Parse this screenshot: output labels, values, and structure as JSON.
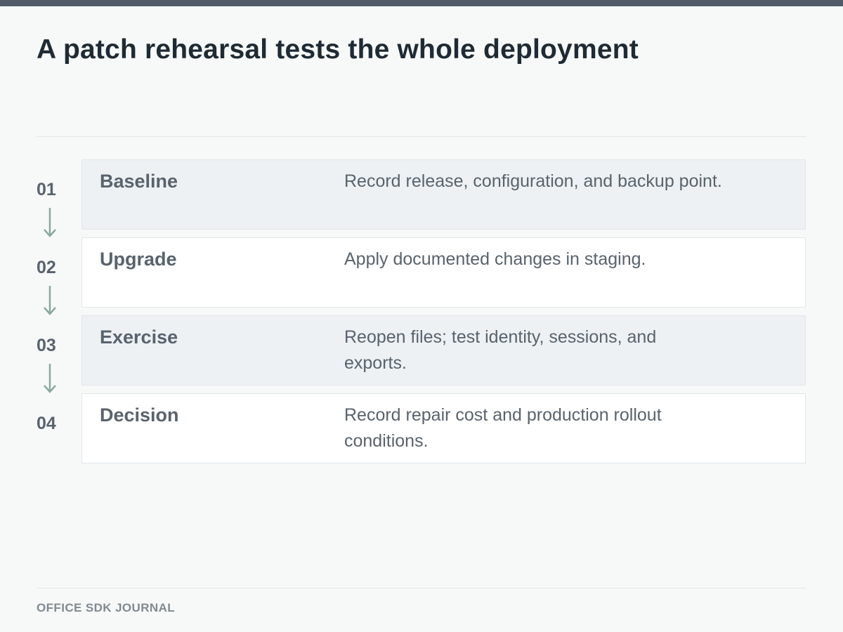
{
  "page": {
    "title": "A patch rehearsal tests the whole deployment",
    "footer": "OFFICE SDK JOURNAL"
  },
  "colors": {
    "top_bar": "#505b67",
    "arrow": "#8aa89c",
    "shaded_row": "#edf1f3",
    "plain_row": "#ffffff",
    "text": "#59636d"
  },
  "steps": [
    {
      "number": "01",
      "label": "Baseline",
      "description": "Record release, configuration, and backup point."
    },
    {
      "number": "02",
      "label": "Upgrade",
      "description": "Apply documented changes in staging."
    },
    {
      "number": "03",
      "label": "Exercise",
      "description": "Reopen files; test identity, sessions, and exports."
    },
    {
      "number": "04",
      "label": "Decision",
      "description": "Record repair cost and production rollout conditions."
    }
  ]
}
